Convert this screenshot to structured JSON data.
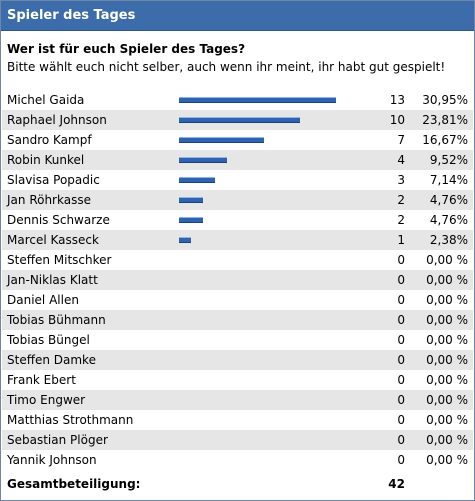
{
  "poll": {
    "title": "Spieler des Tages",
    "question": "Wer ist für euch Spieler des Tages?",
    "subtitle": "Bitte wählt euch nicht selber, auch wenn ihr meint, ihr habt gut gespielt!",
    "bar_color": "#2f62b0",
    "header_color": "#3c6daa",
    "options": [
      {
        "name": "Michel Gaida",
        "count": "13",
        "percent": "30,95%",
        "share": 30.95
      },
      {
        "name": "Raphael Johnson",
        "count": "10",
        "percent": "23,81%",
        "share": 23.81
      },
      {
        "name": "Sandro Kampf",
        "count": "7",
        "percent": "16,67%",
        "share": 16.67
      },
      {
        "name": "Robin Kunkel",
        "count": "4",
        "percent": "9,52%",
        "share": 9.52
      },
      {
        "name": "Slavisa Popadic",
        "count": "3",
        "percent": "7,14%",
        "share": 7.14
      },
      {
        "name": "Jan Röhrkasse",
        "count": "2",
        "percent": "4,76%",
        "share": 4.76
      },
      {
        "name": "Dennis Schwarze",
        "count": "2",
        "percent": "4,76%",
        "share": 4.76
      },
      {
        "name": "Marcel Kasseck",
        "count": "1",
        "percent": "2,38%",
        "share": 2.38
      },
      {
        "name": "Steffen Mitschker",
        "count": "0",
        "percent": "0,00 %",
        "share": 0
      },
      {
        "name": "Jan-Niklas Klatt",
        "count": "0",
        "percent": "0,00 %",
        "share": 0
      },
      {
        "name": "Daniel Allen",
        "count": "0",
        "percent": "0,00 %",
        "share": 0
      },
      {
        "name": "Tobias Bühmann",
        "count": "0",
        "percent": "0,00 %",
        "share": 0
      },
      {
        "name": "Tobias Büngel",
        "count": "0",
        "percent": "0,00 %",
        "share": 0
      },
      {
        "name": "Steffen Damke",
        "count": "0",
        "percent": "0,00 %",
        "share": 0
      },
      {
        "name": "Frank Ebert",
        "count": "0",
        "percent": "0,00 %",
        "share": 0
      },
      {
        "name": "Timo Engwer",
        "count": "0",
        "percent": "0,00 %",
        "share": 0
      },
      {
        "name": "Matthias Strothmann",
        "count": "0",
        "percent": "0,00 %",
        "share": 0
      },
      {
        "name": "Sebastian Plöger",
        "count": "0",
        "percent": "0,00 %",
        "share": 0
      },
      {
        "name": "Yannik Johnson",
        "count": "0",
        "percent": "0,00 %",
        "share": 0
      }
    ],
    "total_label": "Gesamtbeteiligung:",
    "total_count": "42"
  }
}
